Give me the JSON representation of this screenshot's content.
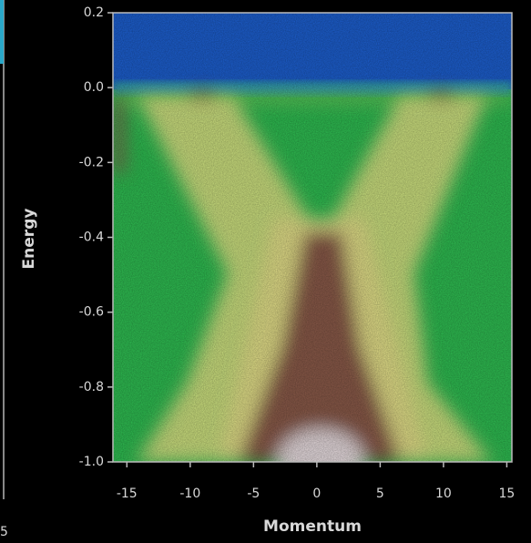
{
  "chart_data": {
    "type": "heatmap",
    "x_label": "Momentum",
    "y_label": "Energy",
    "xlim": [
      -16.1,
      15.4
    ],
    "ylim": [
      -1.0,
      0.2
    ],
    "xticks": [
      -15,
      -10,
      -5,
      0,
      5,
      10,
      15
    ],
    "yticks": [
      0.2,
      {
        "value": 0.0,
        "label": "0.0"
      },
      -0.2,
      -0.4,
      -0.6,
      -0.8,
      {
        "value": -1.0,
        "label": "-1.0"
      }
    ],
    "neighbor_panel_tick": "5"
  }
}
